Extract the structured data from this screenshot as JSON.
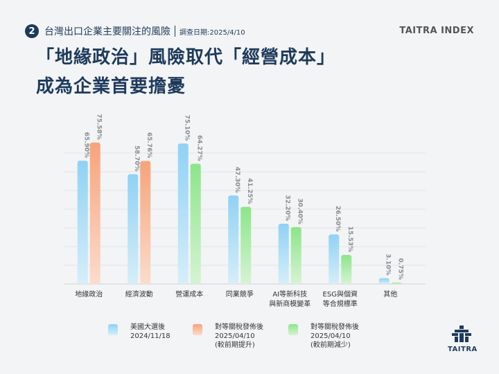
{
  "header": {
    "number": "2",
    "section_title": "台灣出口企業主要關注的風險",
    "survey_date": "調查日期:2025/4/10",
    "brand": "TAITRA INDEX"
  },
  "title": {
    "line1": "「地緣政治」風險取代「經營成本」",
    "line2": "成為企業首要擔憂"
  },
  "chart_data": {
    "type": "bar",
    "title": "",
    "xlabel": "",
    "ylabel": "",
    "ylim": [
      0,
      80
    ],
    "grid": true,
    "categories": [
      [
        "地緣政治"
      ],
      [
        "經濟波動"
      ],
      [
        "營運成本"
      ],
      [
        "同業競爭"
      ],
      [
        "AI等新科技",
        "與新商模變革"
      ],
      [
        "ESG與個資",
        "等合規標準"
      ],
      [
        "其他"
      ]
    ],
    "series": [
      {
        "name": "美國大選後 2024/11/18",
        "values": [
          65.9,
          58.7,
          75.1,
          47.3,
          32.2,
          26.5,
          3.1
        ],
        "labels": [
          "65.90%",
          "58.70%",
          "75.10%",
          "47.30%",
          "32.20%",
          "26.50%",
          "3.10%"
        ]
      },
      {
        "name": "對等關稅發佈後 2025/04/10",
        "values": [
          75.58,
          65.76,
          64.27,
          41.25,
          30.4,
          15.53,
          0.75
        ],
        "labels": [
          "75.58%",
          "65.76%",
          "64.27%",
          "41.25%",
          "30.40%",
          "15.53%",
          "0.75%"
        ],
        "directions": [
          "up",
          "up",
          "down",
          "down",
          "down",
          "down",
          "down"
        ]
      }
    ],
    "colors": {
      "blue": "#8fd2f5",
      "orange": "#f7a37a",
      "green": "#8ce58a"
    }
  },
  "legend": [
    {
      "lines": [
        "美國大選後",
        "2024/11/18"
      ],
      "color": "#8fd2f5"
    },
    {
      "lines": [
        "對等關稅發佈後",
        "2025/04/10",
        "(較前期提升)"
      ],
      "color": "#f7a37a"
    },
    {
      "lines": [
        "對等關稅發佈後",
        "2025/04/10",
        "(較前期減少)"
      ],
      "color": "#8ce58a"
    }
  ],
  "logo": {
    "text": "TAITRA"
  }
}
